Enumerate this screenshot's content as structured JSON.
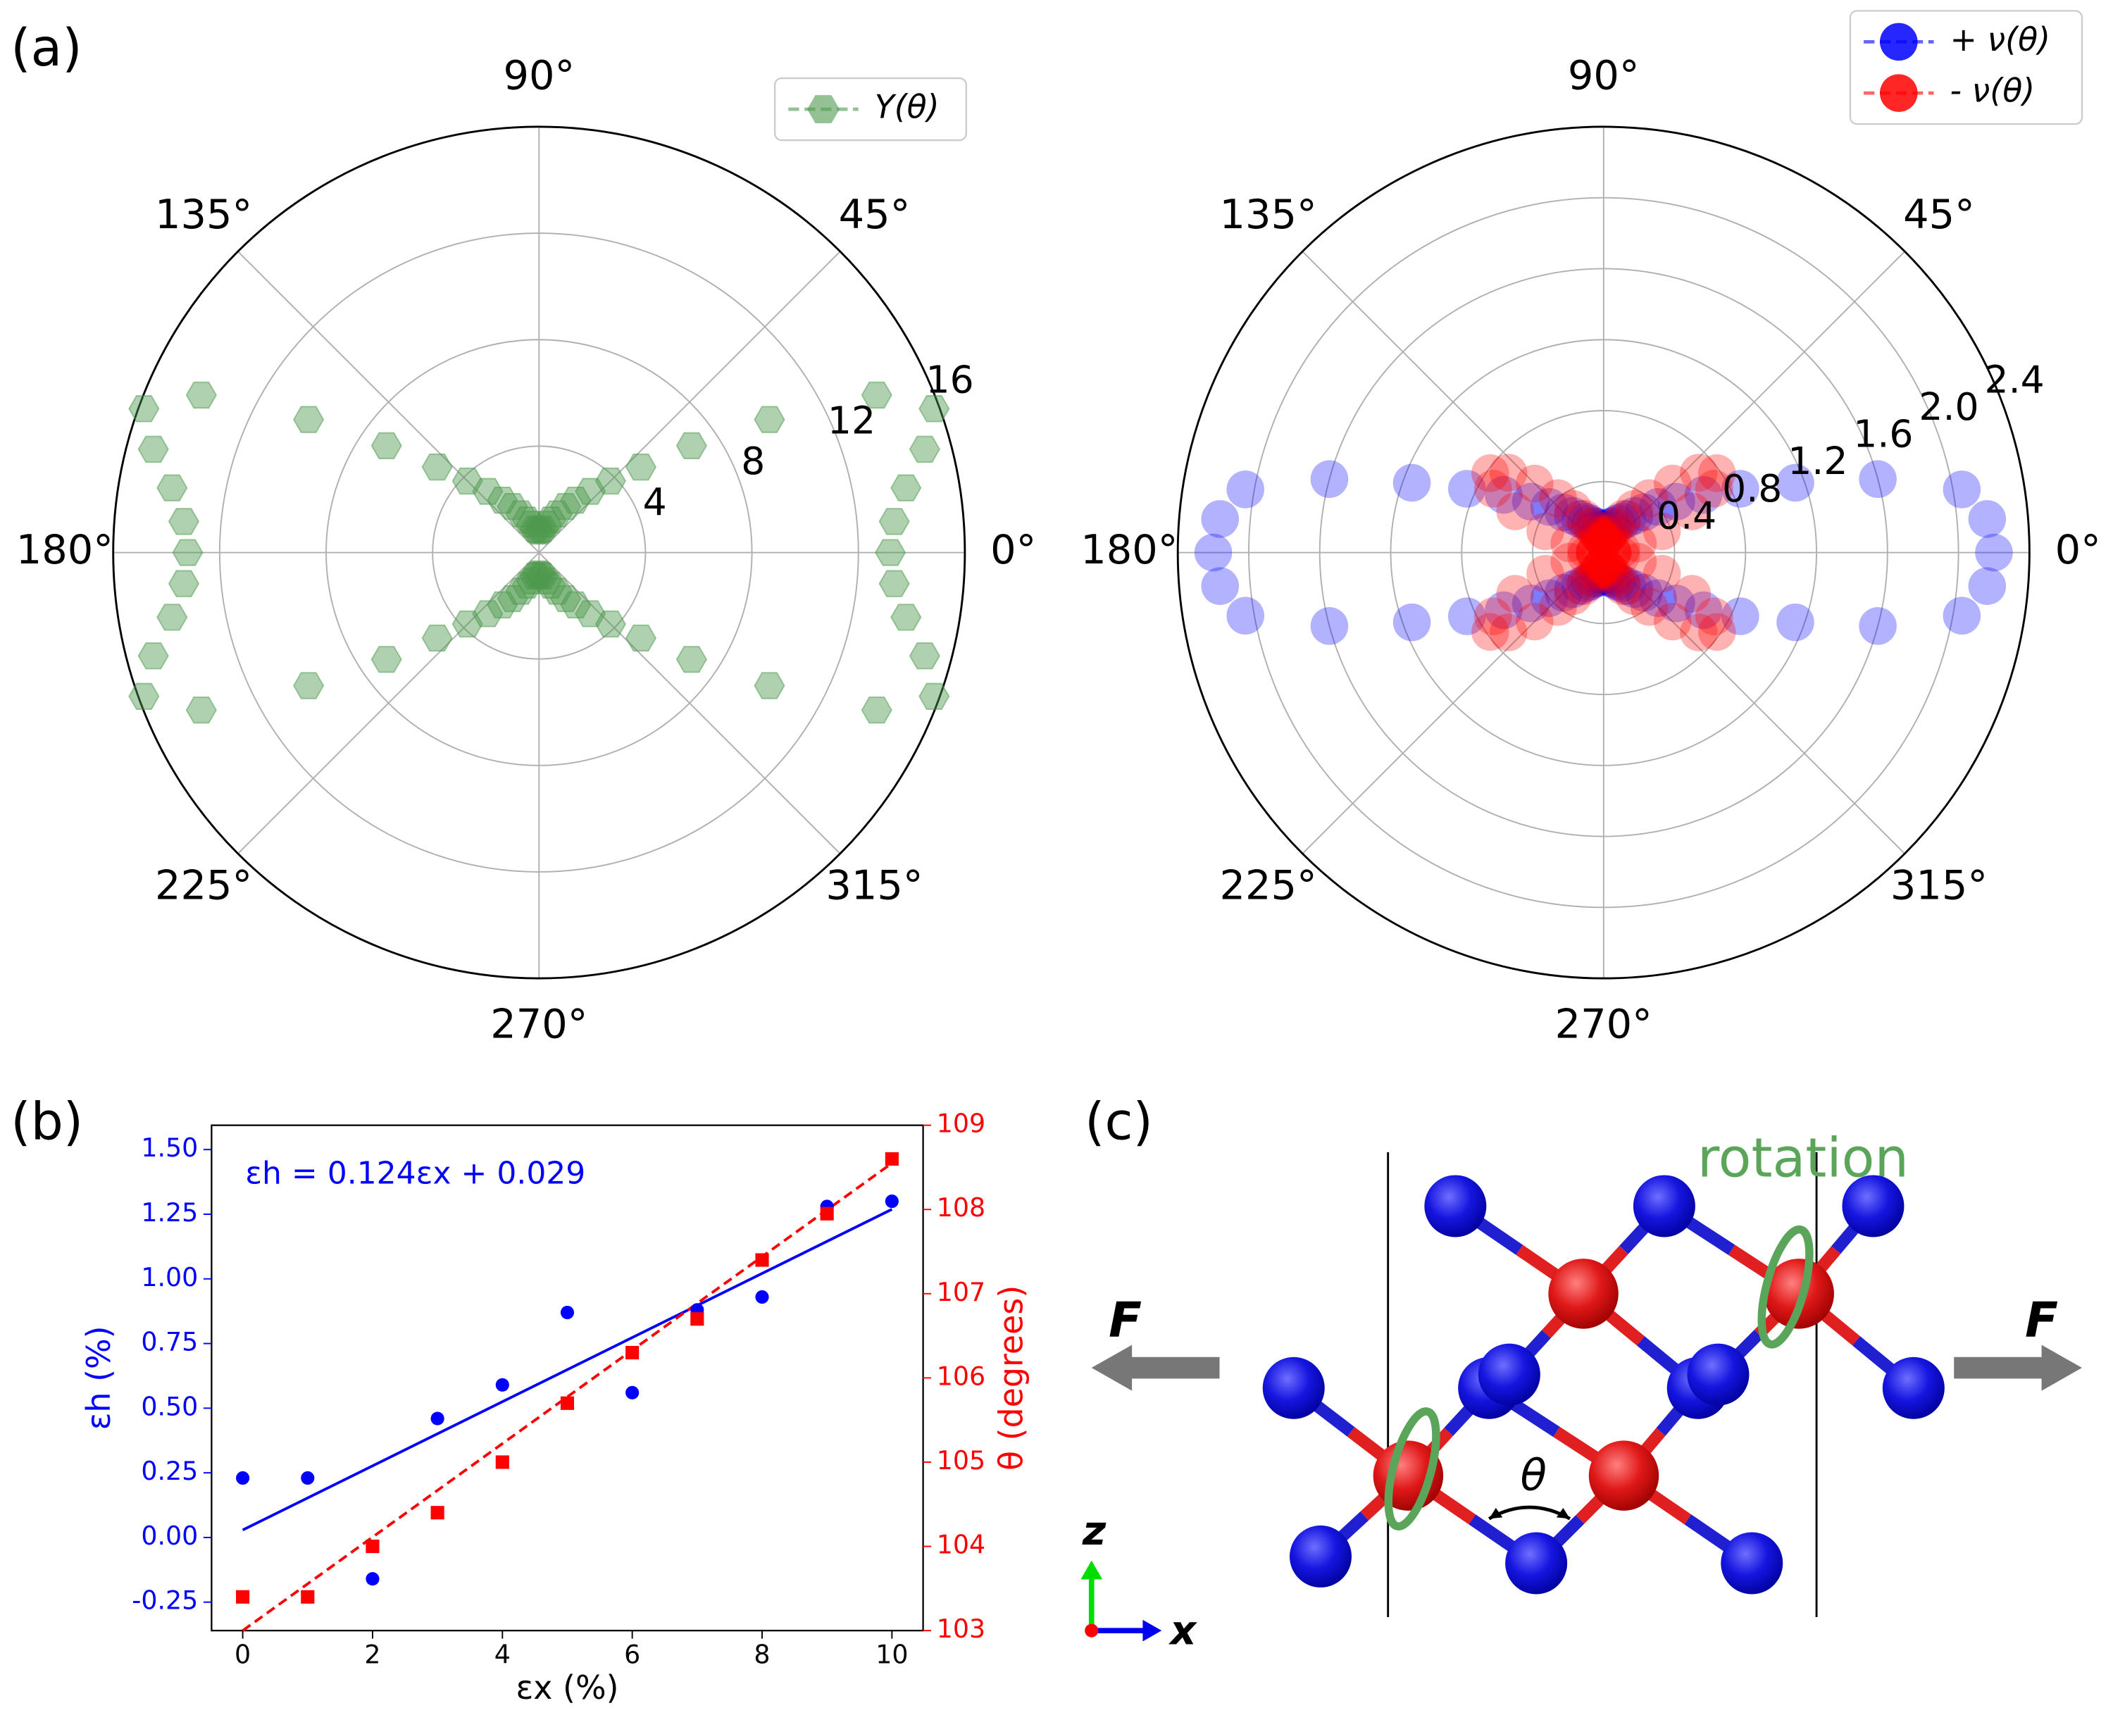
{
  "chart_data": [
    {
      "type": "polar",
      "theta": [
        0,
        5,
        10,
        15,
        20,
        25,
        30,
        35,
        40,
        45,
        50,
        55,
        60,
        65,
        70,
        75,
        80,
        85,
        90,
        95,
        100,
        105,
        110,
        115,
        120,
        125,
        130,
        135,
        140,
        145,
        150,
        155,
        160,
        165,
        170,
        175,
        180,
        185,
        190,
        195,
        200,
        205,
        210,
        215,
        220,
        225,
        230,
        235,
        240,
        245,
        250,
        255,
        260,
        265,
        270,
        275,
        280,
        285,
        290,
        295,
        300,
        305,
        310,
        315,
        320,
        325,
        330,
        335,
        340,
        345,
        350,
        355
      ],
      "series": [
        {
          "name": "Y(θ)",
          "color": "#4e9a4e",
          "marker": "hexagon",
          "values": [
            13.2,
            13.4,
            14.0,
            15.0,
            15.8,
            14.0,
            10.0,
            7.0,
            5.0,
            3.8,
            3.0,
            2.4,
            2.0,
            1.6,
            1.3,
            1.1,
            0.9,
            0.85,
            0.8,
            0.85,
            0.9,
            1.1,
            1.3,
            1.6,
            2.0,
            2.4,
            3.0,
            3.8,
            5.0,
            7.0,
            10.0,
            14.0,
            15.8,
            15.0,
            14.0,
            13.4,
            13.2,
            13.4,
            14.0,
            15.0,
            15.8,
            14.0,
            10.0,
            7.0,
            5.0,
            3.8,
            3.0,
            2.4,
            2.0,
            1.6,
            1.3,
            1.1,
            0.9,
            0.85,
            0.8,
            0.85,
            0.9,
            1.1,
            1.3,
            1.6,
            2.0,
            2.4,
            3.0,
            3.8,
            5.0,
            7.0,
            10.0,
            14.0,
            15.8,
            15.0,
            14.0,
            13.4
          ]
        }
      ],
      "rlim": [
        0,
        16
      ],
      "rticks": [
        4,
        8,
        12,
        16
      ],
      "thetaticks": [
        {
          "value": 0,
          "label": "0°"
        },
        {
          "value": 45,
          "label": "45°"
        },
        {
          "value": 90,
          "label": "90°"
        },
        {
          "value": 135,
          "label": "135°"
        },
        {
          "value": 180,
          "label": "180°"
        },
        {
          "value": 225,
          "label": "225°"
        },
        {
          "value": 270,
          "label": "270°"
        },
        {
          "value": 315,
          "label": "315°"
        }
      ],
      "grid": true,
      "legend": "upper right"
    },
    {
      "type": "polar",
      "theta": [
        0,
        5,
        10,
        15,
        20,
        25,
        30,
        35,
        40,
        45,
        50,
        55,
        60,
        65,
        70,
        75,
        80,
        85,
        90,
        95,
        100,
        105,
        110,
        115,
        120,
        125,
        130,
        135,
        140,
        145,
        150,
        155,
        160,
        165,
        170,
        175,
        180,
        185,
        190,
        195,
        200,
        205,
        210,
        215,
        220,
        225,
        230,
        235,
        240,
        245,
        250,
        255,
        260,
        265,
        270,
        275,
        280,
        285,
        290,
        295,
        300,
        305,
        310,
        315,
        320,
        325,
        330,
        335,
        340,
        345,
        350,
        355
      ],
      "series": [
        {
          "name": "+ ν(θ)",
          "color": "#0000ff",
          "marker": "circle",
          "values": [
            2.2,
            2.17,
            2.05,
            1.6,
            1.15,
            0.85,
            0.65,
            0.5,
            0.4,
            0.32,
            0.27,
            0.23,
            0.2,
            0.18,
            0.16,
            0.15,
            0.14,
            0.13,
            0.13,
            0.13,
            0.14,
            0.15,
            0.16,
            0.18,
            0.2,
            0.23,
            0.27,
            0.32,
            0.4,
            0.5,
            0.65,
            0.85,
            1.15,
            1.6,
            2.05,
            2.17,
            2.2,
            2.17,
            2.05,
            1.6,
            1.15,
            0.85,
            0.65,
            0.5,
            0.4,
            0.32,
            0.27,
            0.23,
            0.2,
            0.18,
            0.16,
            0.15,
            0.14,
            0.13,
            0.13,
            0.13,
            0.14,
            0.15,
            0.16,
            0.18,
            0.2,
            0.23,
            0.27,
            0.32,
            0.4,
            0.5,
            0.65,
            0.85,
            1.15,
            1.6,
            2.05,
            2.17
          ]
        },
        {
          "name": "- ν(θ)",
          "color": "#ff0000",
          "marker": "circle",
          "values": [
            0.05,
            0.05,
            0.1,
            0.2,
            0.35,
            0.55,
            0.72,
            0.78,
            0.7,
            0.55,
            0.4,
            0.3,
            0.22,
            0.16,
            0.12,
            0.1,
            0.08,
            0.07,
            0.07,
            0.07,
            0.08,
            0.1,
            0.12,
            0.16,
            0.22,
            0.3,
            0.4,
            0.55,
            0.7,
            0.78,
            0.72,
            0.55,
            0.35,
            0.2,
            0.1,
            0.05,
            0.05,
            0.05,
            0.1,
            0.2,
            0.35,
            0.55,
            0.72,
            0.78,
            0.7,
            0.55,
            0.4,
            0.3,
            0.22,
            0.16,
            0.12,
            0.1,
            0.08,
            0.07,
            0.07,
            0.07,
            0.08,
            0.1,
            0.12,
            0.16,
            0.22,
            0.3,
            0.4,
            0.55,
            0.7,
            0.78,
            0.72,
            0.55,
            0.35,
            0.2,
            0.1,
            0.05
          ]
        }
      ],
      "rlim": [
        0,
        2.4
      ],
      "rticks": [
        0.4,
        0.8,
        1.2,
        1.6,
        {
          "value": 2,
          "label": "2.0"
        },
        2.4
      ],
      "thetaticks": [
        {
          "value": 0,
          "label": "0°"
        },
        {
          "value": 45,
          "label": "45°"
        },
        {
          "value": 90,
          "label": "90°"
        },
        {
          "value": 135,
          "label": "135°"
        },
        {
          "value": 180,
          "label": "180°"
        },
        {
          "value": 225,
          "label": "225°"
        },
        {
          "value": 270,
          "label": "270°"
        },
        {
          "value": 315,
          "label": "315°"
        }
      ],
      "grid": true,
      "legend": "upper right"
    },
    {
      "type": "scatter",
      "annotation": "εh = 0.124εx + 0.029",
      "xlabel": "εx (%)",
      "ylabel": "εh (%)",
      "y2label": "θ (degrees)",
      "x": [
        0,
        1,
        2,
        3,
        4,
        5,
        6,
        7,
        8,
        9,
        10
      ],
      "series": [
        {
          "color": "#0000ff",
          "marker": "circle",
          "values": [
            0.23,
            0.23,
            -0.16,
            0.46,
            0.59,
            0.87,
            0.56,
            0.88,
            0.93,
            1.28,
            1.3
          ]
        },
        {
          "color": "#ff0000",
          "marker": "square",
          "axis": "y2",
          "values": [
            103.4,
            103.4,
            104.0,
            104.4,
            105.0,
            105.7,
            106.3,
            106.7,
            107.4,
            107.95,
            108.6
          ]
        }
      ],
      "fits": [
        {
          "x": [
            0,
            10
          ],
          "values": [
            0.029,
            1.269
          ],
          "color": "#0000ff",
          "linestyle": "solid"
        },
        {
          "x": [
            0,
            10
          ],
          "values": [
            103.0,
            108.55
          ],
          "color": "#ff0000",
          "linestyle": "dashed",
          "axis": "y2"
        }
      ],
      "xlim": [
        -0.48,
        10.48
      ],
      "xticks": [
        0,
        2,
        4,
        6,
        8,
        10
      ],
      "ylim": [
        -0.36,
        1.594
      ],
      "yticks": [
        -0.25,
        {
          "value": 0,
          "label": "0.00"
        },
        0.25,
        {
          "value": 0.5,
          "label": "0.50"
        },
        0.75,
        {
          "value": 1,
          "label": "1.00"
        },
        1.25,
        {
          "value": 1.5,
          "label": "1.50"
        }
      ],
      "y2lim": [
        103,
        109
      ],
      "y2ticks": [
        103,
        104,
        105,
        106,
        107,
        108,
        109
      ]
    }
  ],
  "panels": [
    "(a)",
    "(b)"
  ],
  "diagram": {
    "label": "(c)",
    "force_left": "F",
    "force_right": "F",
    "rotation": "rotation",
    "angle": "θ",
    "axis_z": "z",
    "axis_x": "x"
  }
}
